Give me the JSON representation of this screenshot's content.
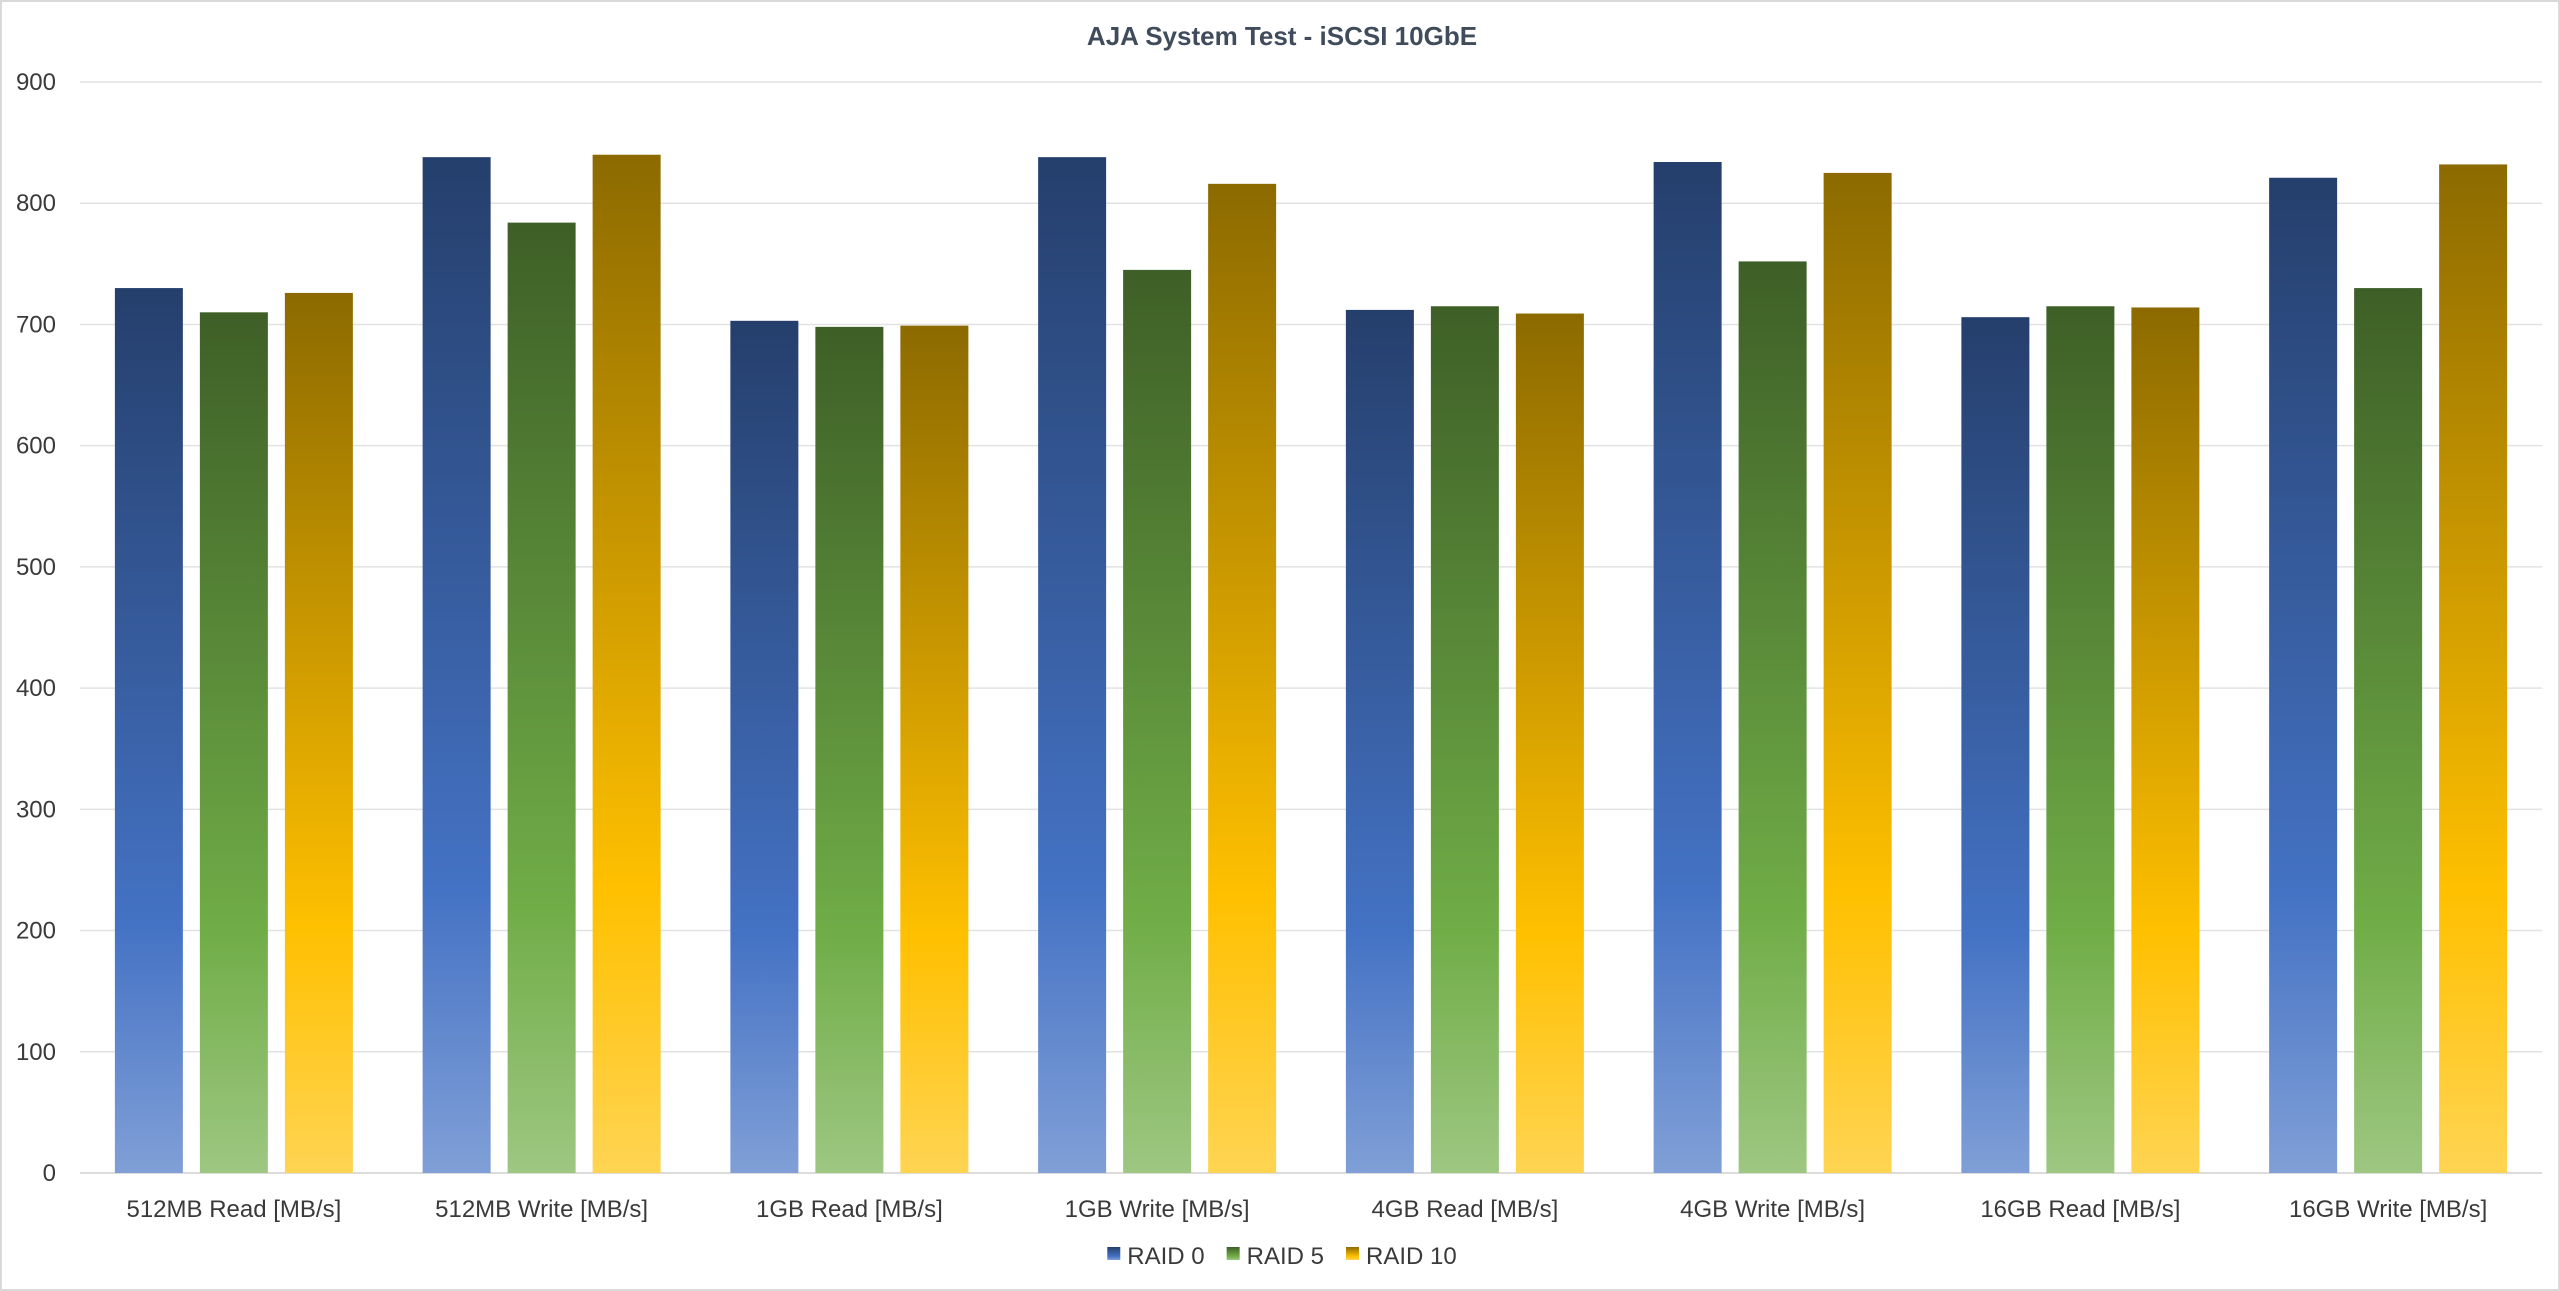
{
  "chart_data": {
    "type": "bar",
    "title": "AJA System Test - iSCSI 10GbE",
    "xlabel": "",
    "ylabel": "",
    "ylim": [
      0,
      900
    ],
    "yticks": [
      0,
      100,
      200,
      300,
      400,
      500,
      600,
      700,
      800,
      900
    ],
    "grid": true,
    "legend_position": "bottom",
    "categories": [
      "512MB Read [MB/s]",
      "512MB Write [MB/s]",
      "1GB Read [MB/s]",
      "1GB Write [MB/s]",
      "4GB Read [MB/s]",
      "4GB Write [MB/s]",
      "16GB Read [MB/s]",
      "16GB Write [MB/s]"
    ],
    "series": [
      {
        "name": "RAID 0",
        "color": "#4472c4",
        "values": [
          730,
          838,
          703,
          838,
          712,
          834,
          706,
          821
        ]
      },
      {
        "name": "RAID 5",
        "color": "#70ad47",
        "values": [
          710,
          784,
          698,
          745,
          715,
          752,
          715,
          730
        ]
      },
      {
        "name": "RAID 10",
        "color": "#ffc000",
        "values": [
          726,
          840,
          699,
          816,
          709,
          825,
          714,
          832
        ]
      }
    ]
  }
}
